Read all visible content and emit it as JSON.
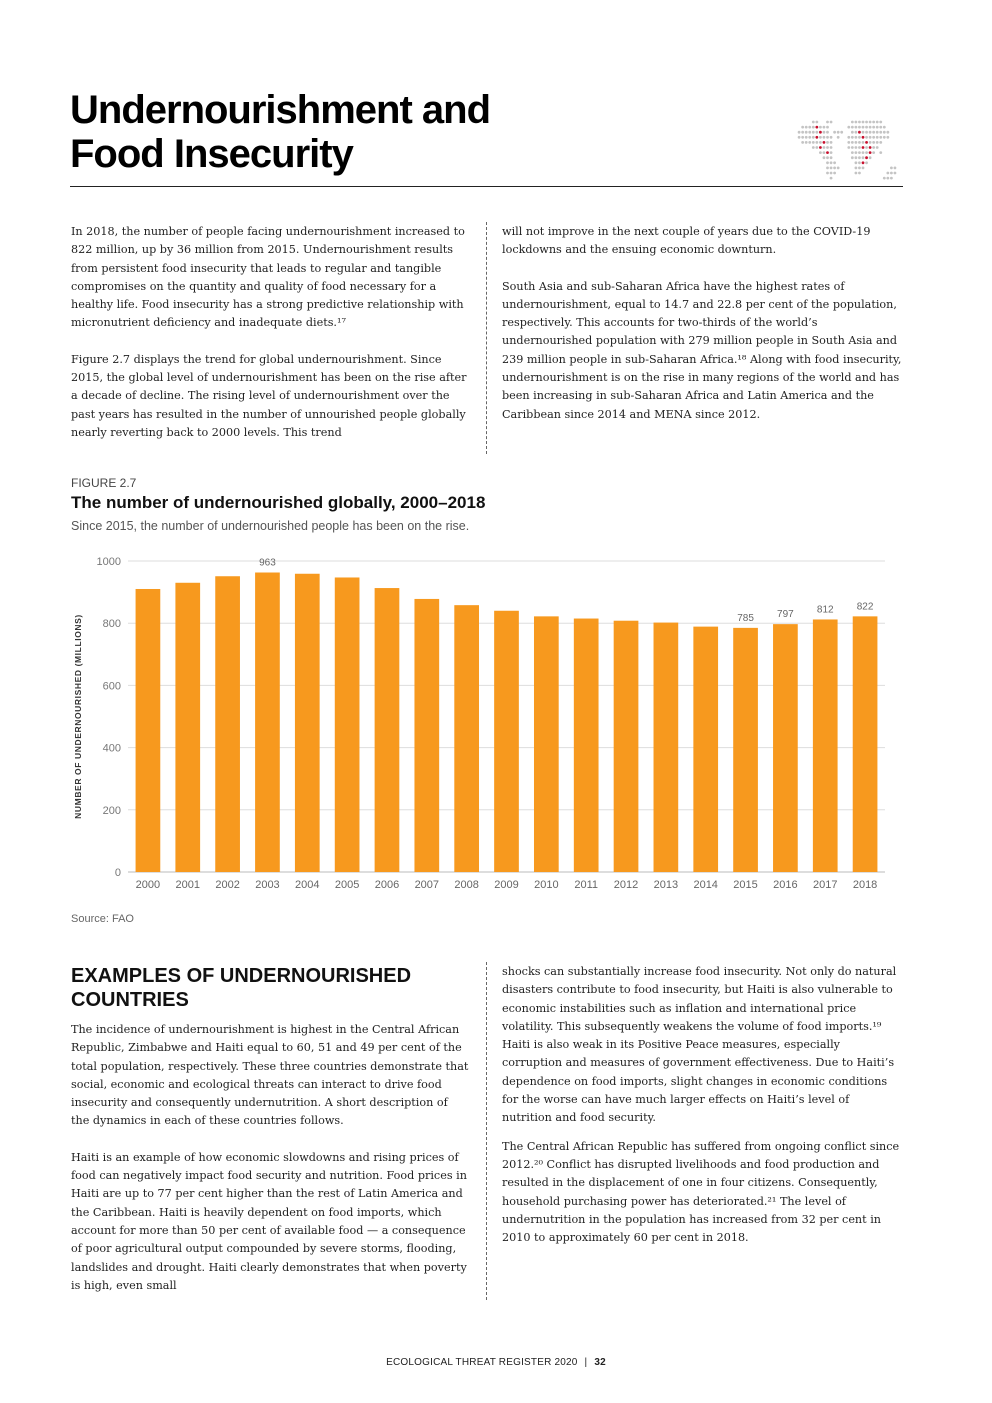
{
  "page": {
    "title": "Undernourishment and Food Insecurity",
    "footer_text": "ECOLOGICAL THREAT REGISTER 2020",
    "footer_sep": "|",
    "page_number": "32"
  },
  "intro": {
    "left_paragraphs": [
      "In 2018, the number of people facing undernourishment increased to 822 million, up by 36 million from 2015. Undernourishment results from persistent food insecurity that leads to regular and tangible compromises on the quantity and quality of food necessary for a healthy life. Food insecurity has a strong predictive relationship with micronutrient deficiency and inadequate diets.¹⁷",
      "Figure 2.7 displays the trend for global undernourishment. Since 2015, the global level of undernourishment has been on the rise after a decade of decline. The rising level of undernourishment over the past years has resulted in the number of unnourished people globally nearly reverting back to 2000 levels. This trend"
    ],
    "right_paragraphs": [
      "will not improve in the next couple of years due to the COVID-19 lockdowns and the ensuing economic downturn.",
      "South Asia and sub-Saharan Africa have the highest rates of undernourishment, equal to 14.7 and 22.8 per cent of the population, respectively. This accounts for two-thirds of the world’s undernourished population with 279 million people in South Asia and 239 million people in sub-Saharan Africa.¹⁸ Along with food insecurity, undernourishment is on the rise in many regions of the world and has been increasing in sub-Saharan Africa and Latin America and the Caribbean since 2014 and MENA since 2012."
    ]
  },
  "figure": {
    "label": "FIGURE 2.7",
    "title": "The number of undernourished globally, 2000–2018",
    "subtitle": "Since 2015, the number of undernourished people has been on the rise.",
    "source": "Source: FAO"
  },
  "chart_data": {
    "type": "bar",
    "categories": [
      "2000",
      "2001",
      "2002",
      "2003",
      "2004",
      "2005",
      "2006",
      "2007",
      "2008",
      "2009",
      "2010",
      "2011",
      "2012",
      "2013",
      "2014",
      "2015",
      "2016",
      "2017",
      "2018"
    ],
    "values": [
      910,
      930,
      951,
      963,
      959,
      947,
      913,
      878,
      858,
      840,
      822,
      815,
      808,
      802,
      789,
      785,
      797,
      812,
      822
    ],
    "data_labels": [
      {
        "category": "2003",
        "label": "963"
      },
      {
        "category": "2015",
        "label": "785"
      },
      {
        "category": "2016",
        "label": "797"
      },
      {
        "category": "2017",
        "label": "812"
      },
      {
        "category": "2018",
        "label": "822"
      }
    ],
    "ylabel": "NUMBER OF UNDERNOURISHED (MILLIONS)",
    "xlabel": "",
    "ylim": [
      0,
      1000
    ],
    "yticks": [
      0,
      200,
      400,
      600,
      800,
      1000
    ],
    "grid": true,
    "bar_color": "#F7991E"
  },
  "section": {
    "heading": "EXAMPLES OF UNDERNOURISHED COUNTRIES",
    "left_paragraphs": [
      "The incidence of undernourishment is highest in the Central African Republic, Zimbabwe and Haiti equal to 60, 51 and 49 per cent of the total population, respectively. These three countries demonstrate that social, economic and ecological threats can interact to drive food insecurity and consequently undernutrition. A short description of the dynamics in each of these countries follows.",
      "Haiti is an example of how economic slowdowns and rising prices of food can negatively impact food security and nutrition. Food prices in Haiti are up to 77 per cent higher than the rest of Latin America and the Caribbean. Haiti is heavily dependent on food imports, which account for more than 50 per cent of available food — a consequence of poor agricultural output compounded by severe storms, flooding, landslides and drought. Haiti clearly demonstrates that when poverty is high, even small"
    ],
    "right_paragraphs": [
      "shocks can substantially increase food insecurity. Not only do natural disasters contribute to food insecurity, but Haiti is also vulnerable to economic instabilities such as inflation and international price volatility. This subsequently weakens the volume of food imports.¹⁹ Haiti is also weak in its Positive Peace measures, especially corruption and measures of government effectiveness. Due to Haiti’s dependence on food imports, slight changes in economic conditions for the worse can have much larger effects on Haiti’s level of nutrition and food security.",
      "The Central African Republic has suffered from ongoing conflict since 2012.²⁰ Conflict has disrupted livelihoods and food production and resulted in the displacement of one in four citizens. Consequently, household purchasing power has deteriorated.²¹ The level of undernutrition in the population has increased from 32 per cent in 2010 to approximately 60 per cent in 2018."
    ]
  }
}
